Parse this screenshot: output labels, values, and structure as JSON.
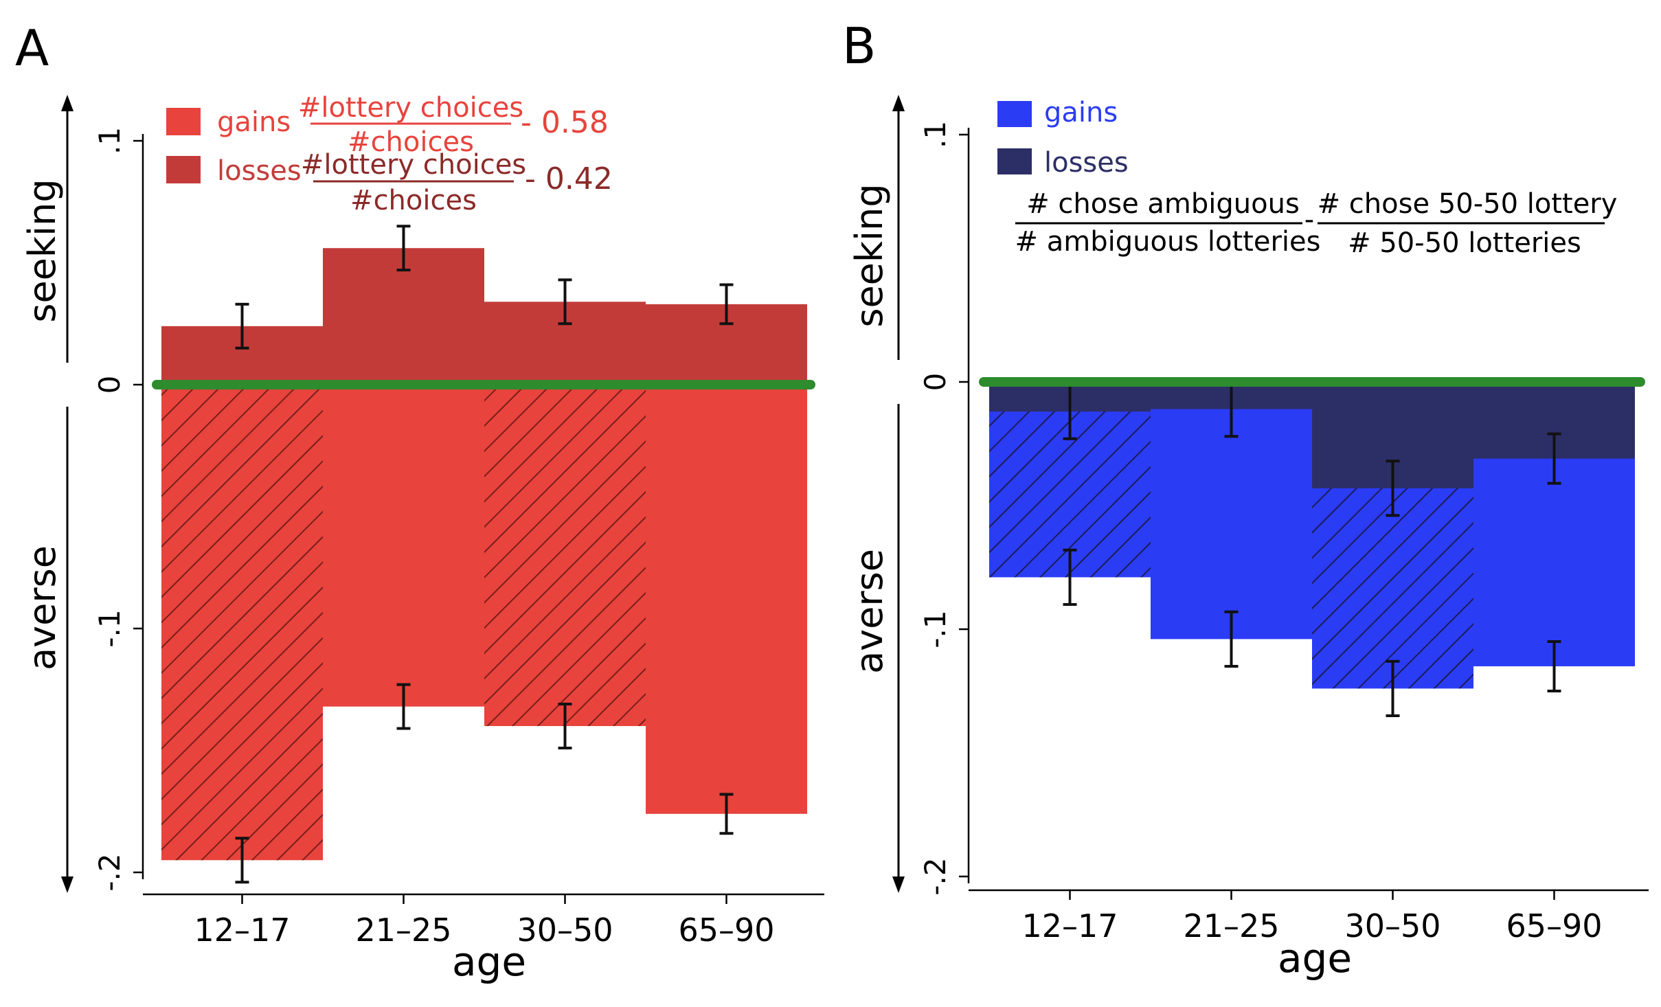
{
  "panels": [
    {
      "label": "A",
      "xlabel": "age",
      "y_direction_labels": {
        "positive": "seeking",
        "negative": "averse"
      },
      "legend": [
        {
          "name": "gains",
          "color": "#e8433c",
          "formula_numerator": "#lottery choices",
          "formula_denominator": "#choices",
          "formula_offset": "- 0.58"
        },
        {
          "name": "losses",
          "color": "#c33b39",
          "formula_numerator": "#lottery choices",
          "formula_denominator": "#choices",
          "formula_offset": "- 0.42"
        }
      ],
      "chart_data": {
        "type": "bar",
        "categories": [
          "12–17",
          "21–25",
          "30–50",
          "65–90"
        ],
        "yticks": [
          ".1",
          "0",
          "-.1",
          "-.2"
        ],
        "ytick_values": [
          0.1,
          0,
          -0.1,
          -0.2
        ],
        "ylim": [
          -0.2,
          0.1
        ],
        "series": [
          {
            "name": "gains",
            "color": "#e8433c",
            "values": [
              -0.195,
              -0.132,
              -0.14,
              -0.176
            ],
            "errors": [
              0.009,
              0.009,
              0.009,
              0.008
            ],
            "hatched": [
              true,
              false,
              true,
              false
            ]
          },
          {
            "name": "losses",
            "color": "#c33b39",
            "values": [
              0.024,
              0.056,
              0.034,
              0.033
            ],
            "errors": [
              0.009,
              0.009,
              0.009,
              0.008
            ],
            "hatched": [
              false,
              false,
              false,
              false
            ]
          }
        ],
        "reference_line": {
          "value": 0,
          "color": "#2e8b2e"
        }
      }
    },
    {
      "label": "B",
      "xlabel": "age",
      "y_direction_labels": {
        "positive": "seeking",
        "negative": "averse"
      },
      "legend": [
        {
          "name": "gains",
          "color": "#2b3cf5"
        },
        {
          "name": "losses",
          "color": "#2c2e66"
        }
      ],
      "formula": {
        "left_numerator": "# chose ambiguous",
        "left_denominator": "# ambiguous lotteries",
        "operator": "-",
        "right_numerator": "# chose 50-50 lottery",
        "right_denominator": "# 50-50 lotteries"
      },
      "chart_data": {
        "type": "bar",
        "categories": [
          "12–17",
          "21–25",
          "30–50",
          "65–90"
        ],
        "yticks": [
          ".1",
          "0",
          "-.1",
          "-.2"
        ],
        "ytick_values": [
          0.1,
          0,
          -0.1,
          -0.2
        ],
        "ylim": [
          -0.2,
          0.1
        ],
        "series": [
          {
            "name": "gains",
            "color": "#2b3cf5",
            "values": [
              -0.079,
              -0.104,
              -0.124,
              -0.115
            ],
            "errors": [
              0.011,
              0.011,
              0.011,
              0.01
            ],
            "hatched": [
              true,
              false,
              true,
              false
            ]
          },
          {
            "name": "losses",
            "color": "#2c2e66",
            "values": [
              -0.012,
              -0.011,
              -0.043,
              -0.031
            ],
            "errors": [
              0.011,
              0.011,
              0.011,
              0.01
            ],
            "hatched": [
              false,
              false,
              false,
              false
            ]
          }
        ],
        "reference_line": {
          "value": 0,
          "color": "#2e8b2e"
        }
      }
    }
  ]
}
